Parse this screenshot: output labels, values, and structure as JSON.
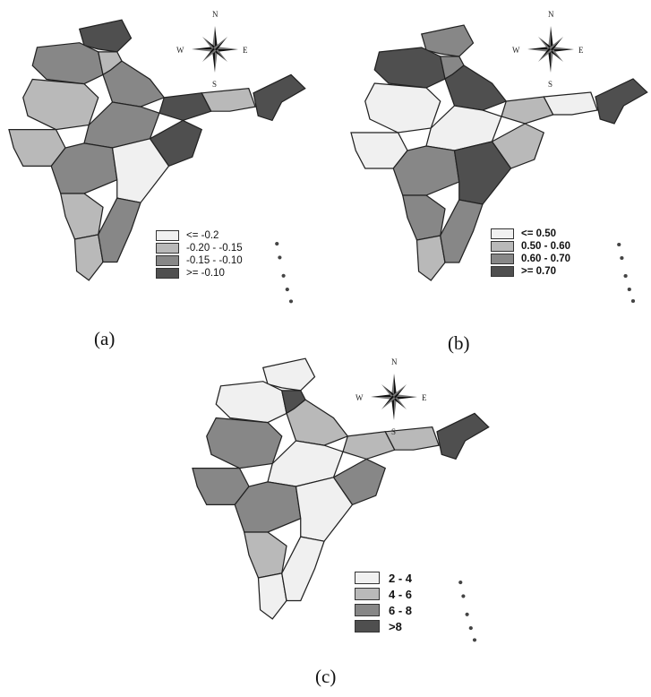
{
  "panels": [
    {
      "id": "a",
      "caption": "(a)",
      "legend": [
        {
          "label": "<= -0.2",
          "color": "#f0f0f0"
        },
        {
          "label": "-0.20 - -0.15",
          "color": "#b9b9b9"
        },
        {
          "label": "-0.15 - -0.10",
          "color": "#878787"
        },
        {
          "label": ">= -0.10",
          "color": "#4f4f4f"
        }
      ]
    },
    {
      "id": "b",
      "caption": "(b)",
      "legend": [
        {
          "label": "<= 0.50",
          "color": "#f0f0f0"
        },
        {
          "label": "0.50 - 0.60",
          "color": "#b9b9b9"
        },
        {
          "label": "0.60 - 0.70",
          "color": "#878787"
        },
        {
          "label": ">= 0.70",
          "color": "#4f4f4f"
        }
      ]
    },
    {
      "id": "c",
      "caption": "(c)",
      "legend": [
        {
          "label": "2 - 4",
          "color": "#f0f0f0"
        },
        {
          "label": "4 - 6",
          "color": "#b9b9b9"
        },
        {
          "label": "6 - 8",
          "color": "#878787"
        },
        {
          "label": ">8",
          "color": "#4f4f4f"
        }
      ]
    }
  ],
  "compass": {
    "n": "N",
    "s": "S",
    "e": "E",
    "w": "W"
  },
  "region_shades": {
    "a": [
      "#4f4f4f",
      "#878787",
      "#b9b9b9",
      "#b9b9b9",
      "#878787",
      "#4f4f4f",
      "#b9b9b9",
      "#878787",
      "#878787",
      "#4f4f4f",
      "#f0f0f0",
      "#b9b9b9",
      "#b9b9b9",
      "#878787",
      "#4f4f4f",
      "#b9b9b9"
    ],
    "b": [
      "#878787",
      "#4f4f4f",
      "#f0f0f0",
      "#878787",
      "#4f4f4f",
      "#b9b9b9",
      "#f0f0f0",
      "#f0f0f0",
      "#878787",
      "#b9b9b9",
      "#4f4f4f",
      "#878787",
      "#b9b9b9",
      "#878787",
      "#4f4f4f",
      "#f0f0f0"
    ],
    "c": [
      "#f0f0f0",
      "#f0f0f0",
      "#878787",
      "#4f4f4f",
      "#b9b9b9",
      "#b9b9b9",
      "#878787",
      "#f0f0f0",
      "#878787",
      "#878787",
      "#f0f0f0",
      "#b9b9b9",
      "#f0f0f0",
      "#f0f0f0",
      "#4f4f4f",
      "#b9b9b9"
    ]
  }
}
